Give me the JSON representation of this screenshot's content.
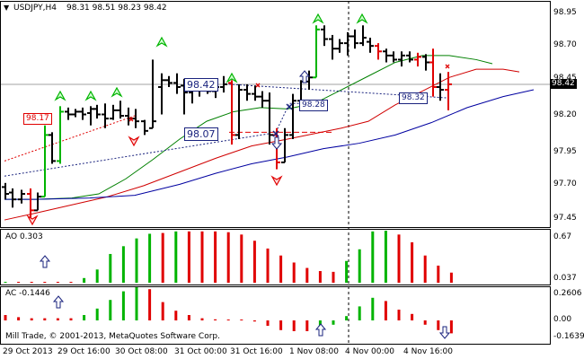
{
  "window": {
    "menu_icon": "triangle-down-icon",
    "title": "USDJPY,H4",
    "ohlc": "98.31 98.51 98.23 98.42"
  },
  "price_scale": {
    "ticks": [
      "98.95",
      "98.70",
      "98.45",
      "98.20",
      "97.95",
      "97.70",
      "97.45"
    ],
    "current": "98.42"
  },
  "price_boxes": {
    "left_red": "98.17",
    "mid_top": "98.42",
    "mid_bottom": "98.07",
    "right_small": "98.28",
    "right_red": "98.32"
  },
  "ao": {
    "title": "AO 0.303",
    "ticks": [
      "0.67",
      "0.037"
    ],
    "values": [
      0.002,
      0.003,
      0.004,
      0.005,
      0.008,
      0.01,
      0.06,
      0.17,
      0.37,
      0.47,
      0.57,
      0.63,
      0.64,
      0.66,
      0.66,
      0.66,
      0.66,
      0.65,
      0.62,
      0.54,
      0.44,
      0.35,
      0.26,
      0.19,
      0.15,
      0.14,
      0.28,
      0.43,
      0.66,
      0.67,
      0.62,
      0.52,
      0.35,
      0.22,
      0.13
    ],
    "colors": [
      "green",
      "red",
      "red",
      "red",
      "red",
      "red",
      "green",
      "green",
      "green",
      "green",
      "green",
      "green",
      "red",
      "green",
      "red",
      "red",
      "red",
      "red",
      "red",
      "red",
      "red",
      "red",
      "red",
      "red",
      "red",
      "red",
      "green",
      "green",
      "green",
      "green",
      "red",
      "red",
      "red",
      "red",
      "red"
    ]
  },
  "ac": {
    "title": "AC -0.1446",
    "ticks": [
      "0.2606",
      "0.00",
      "-0.1639"
    ],
    "values": [
      0.05,
      0.03,
      0.02,
      0.02,
      0.02,
      0.02,
      0.05,
      0.11,
      0.19,
      0.27,
      0.31,
      0.29,
      0.17,
      0.09,
      0.05,
      0.02,
      0.01,
      0.005,
      0.005,
      -0.01,
      -0.05,
      -0.09,
      -0.1,
      -0.1,
      -0.07,
      -0.04,
      0.04,
      0.13,
      0.21,
      0.18,
      0.1,
      0.06,
      -0.04,
      -0.09,
      -0.12
    ],
    "colors": [
      "red",
      "red",
      "red",
      "red",
      "red",
      "red",
      "green",
      "green",
      "green",
      "green",
      "green",
      "red",
      "red",
      "red",
      "red",
      "red",
      "red",
      "red",
      "red",
      "red",
      "red",
      "red",
      "red",
      "red",
      "green",
      "green",
      "green",
      "green",
      "green",
      "red",
      "red",
      "red",
      "red",
      "red",
      "red"
    ]
  },
  "time_axis": [
    "29 Oct 2013",
    "29 Oct 16:00",
    "30 Oct 08:00",
    "31 Oct 00:00",
    "31 Oct 16:00",
    "1 Nov 08:00",
    "4 Nov 00:00",
    "4 Nov 16:00"
  ],
  "copyright": "Mill Trade, © 2001-2013, MetaQuotes Software Corp.",
  "colors": {
    "bull": "#00b400",
    "bear": "#e00000",
    "ma_green": "#008000",
    "ma_red": "#d00000",
    "ma_blue": "#0000a0",
    "grid": "#c0c0c0"
  }
}
